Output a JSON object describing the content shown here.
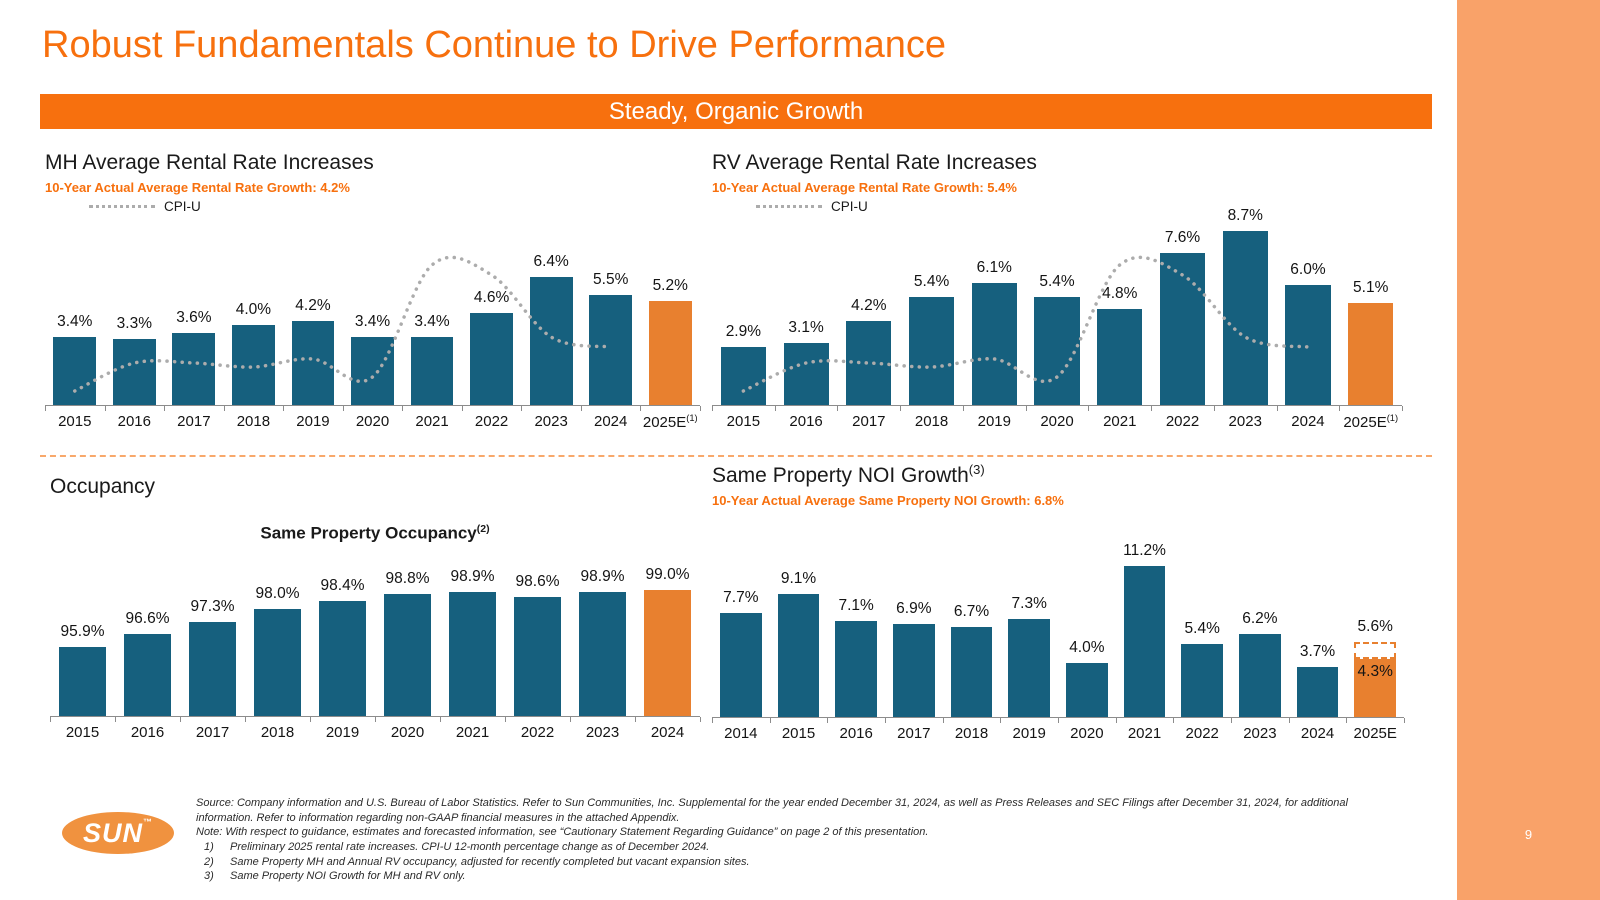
{
  "page": {
    "title": "Robust Fundamentals Continue to Drive Performance",
    "banner": "Steady, Organic Growth",
    "page_number": "9"
  },
  "colors": {
    "accent_orange": "#F7700E",
    "bar_blue": "#16607E",
    "bar_orange": "#E8802F",
    "sidebar_orange": "#F9A269",
    "cpi_line_gray": "#ACACAC"
  },
  "chart_data": [
    {
      "id": "mh",
      "type": "bar",
      "title": "MH Average Rental Rate Increases",
      "subtitle": "10-Year Actual Average Rental Rate Growth: 4.2%",
      "categories": [
        "2015",
        "2016",
        "2017",
        "2018",
        "2019",
        "2020",
        "2021",
        "2022",
        "2023",
        "2024",
        "2025E"
      ],
      "category_sup": "(1)",
      "values": [
        3.4,
        3.3,
        3.6,
        4.0,
        4.2,
        3.4,
        3.4,
        4.6,
        6.4,
        5.5,
        5.2
      ],
      "labels": [
        "3.4%",
        "3.3%",
        "3.6%",
        "4.0%",
        "4.2%",
        "3.4%",
        "3.4%",
        "4.6%",
        "6.4%",
        "5.5%",
        "5.2%"
      ],
      "highlight_index": 10,
      "ylim": [
        0,
        8.5
      ],
      "line": {
        "name": "CPI-U",
        "values": [
          0.7,
          2.1,
          2.1,
          1.9,
          2.3,
          1.4,
          7.0,
          6.5,
          3.4,
          2.9
        ]
      },
      "legend_position": "top-left"
    },
    {
      "id": "rv",
      "type": "bar",
      "title": "RV Average Rental Rate Increases",
      "subtitle": "10-Year Actual Average Rental Rate Growth: 5.4%",
      "categories": [
        "2015",
        "2016",
        "2017",
        "2018",
        "2019",
        "2020",
        "2021",
        "2022",
        "2023",
        "2024",
        "2025E"
      ],
      "category_sup": "(1)",
      "values": [
        2.9,
        3.1,
        4.2,
        5.4,
        6.1,
        5.4,
        4.8,
        7.6,
        8.7,
        6.0,
        5.1
      ],
      "labels": [
        "2.9%",
        "3.1%",
        "4.2%",
        "5.4%",
        "6.1%",
        "5.4%",
        "4.8%",
        "7.6%",
        "8.7%",
        "6.0%",
        "5.1%"
      ],
      "highlight_index": 10,
      "ylim": [
        0,
        9.5
      ],
      "line": {
        "name": "CPI-U",
        "values": [
          0.7,
          2.1,
          2.1,
          1.9,
          2.3,
          1.4,
          7.0,
          6.5,
          3.4,
          2.9
        ]
      },
      "legend_position": "top-left"
    },
    {
      "id": "occupancy",
      "type": "bar",
      "section_label": "Occupancy",
      "title": "Same Property Occupancy",
      "title_sup": "(2)",
      "categories": [
        "2015",
        "2016",
        "2017",
        "2018",
        "2019",
        "2020",
        "2021",
        "2022",
        "2023",
        "2024"
      ],
      "values": [
        95.9,
        96.6,
        97.3,
        98.0,
        98.4,
        98.8,
        98.9,
        98.6,
        98.9,
        99.0
      ],
      "labels": [
        "95.9%",
        "96.6%",
        "97.3%",
        "98.0%",
        "98.4%",
        "98.8%",
        "98.9%",
        "98.6%",
        "98.9%",
        "99.0%"
      ],
      "highlight_index": 9,
      "ylim": [
        92.2,
        99.6
      ]
    },
    {
      "id": "noi",
      "type": "bar",
      "title": "Same Property NOI Growth",
      "title_sup": "(3)",
      "subtitle": "10-Year Actual Average Same Property NOI Growth: 6.8%",
      "categories": [
        "2014",
        "2015",
        "2016",
        "2017",
        "2018",
        "2019",
        "2020",
        "2021",
        "2022",
        "2023",
        "2024",
        "2025E"
      ],
      "values": [
        7.7,
        9.1,
        7.1,
        6.9,
        6.7,
        7.3,
        4.0,
        11.2,
        5.4,
        6.2,
        3.7,
        4.3
      ],
      "labels": [
        "7.7%",
        "9.1%",
        "7.1%",
        "6.9%",
        "6.7%",
        "7.3%",
        "4.0%",
        "11.2%",
        "5.4%",
        "6.2%",
        "3.7%",
        "4.3%"
      ],
      "highlight_index": 11,
      "forecast": {
        "index": 11,
        "solid": 4.3,
        "dashed_top": 5.6,
        "solid_label": "4.3%",
        "dashed_label": "5.6%"
      },
      "ylim": [
        0,
        12.5
      ]
    }
  ],
  "footer": {
    "logo_text": "SUN",
    "logo_tm": "™",
    "source": "Source: Company information and U.S. Bureau of Labor Statistics. Refer to Sun Communities, Inc. Supplemental for the year ended December 31, 2024, as well as Press Releases and SEC Filings after December 31, 2024, for additional information. Refer to information regarding non-GAAP financial measures in the attached Appendix.",
    "note": "Note: With respect to guidance, estimates and forecasted information, see “Cautionary Statement Regarding Guidance” on page 2 of this presentation.",
    "items": [
      {
        "n": "1)",
        "text": "Preliminary 2025 rental rate increases. CPI-U 12-month percentage change as of December 2024."
      },
      {
        "n": "2)",
        "text": "Same Property MH and Annual RV occupancy, adjusted for recently completed but vacant expansion sites."
      },
      {
        "n": "3)",
        "text": "Same Property NOI Growth for MH and RV only."
      }
    ]
  }
}
